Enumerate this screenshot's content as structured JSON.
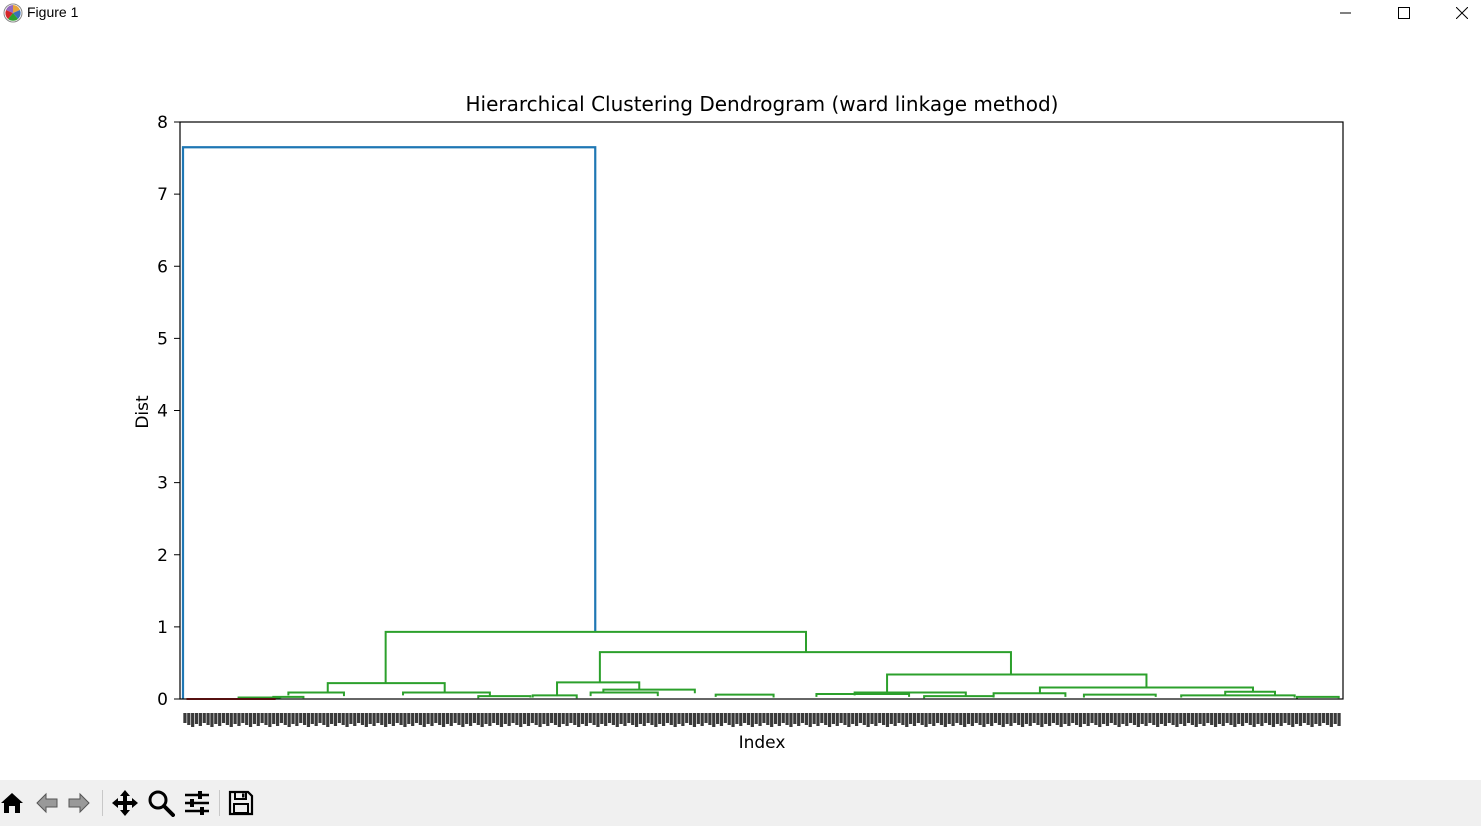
{
  "window": {
    "title": "Figure 1",
    "app_icon": "matplotlib-icon",
    "controls": [
      {
        "name": "minimize-button",
        "icon": "minimize-icon"
      },
      {
        "name": "maximize-button",
        "icon": "maximize-icon"
      },
      {
        "name": "close-button",
        "icon": "close-icon"
      }
    ]
  },
  "toolbar": {
    "tools": [
      {
        "name": "home-button",
        "icon": "home-icon"
      },
      {
        "name": "back-button",
        "icon": "back-arrow-icon"
      },
      {
        "name": "forward-button",
        "icon": "forward-arrow-icon"
      },
      {
        "name": "pan-button",
        "icon": "move-icon"
      },
      {
        "name": "zoom-button",
        "icon": "magnifier-icon"
      },
      {
        "name": "configure-subplots-button",
        "icon": "sliders-icon"
      },
      {
        "name": "save-button",
        "icon": "save-icon"
      }
    ]
  },
  "chart_data": {
    "type": "dendrogram",
    "title": "Hierarchical Clustering Dendrogram (ward linkage method)",
    "xlabel": "Index",
    "ylabel": "Dist",
    "ylim": [
      0,
      8
    ],
    "yticks": [
      "0",
      "1",
      "2",
      "3",
      "4",
      "5",
      "6",
      "7",
      "8"
    ],
    "xlim": [
      0,
      1
    ],
    "x_tick_labels_note_count": 300,
    "colors": {
      "root": "#1f77b4",
      "cluster_small": "#d62728",
      "cluster_large": "#2ca02c",
      "text": "#000000"
    },
    "links": [
      {
        "c": "root",
        "x1": 0.0,
        "x2": 0.356,
        "h": 7.65,
        "h1": 0.0,
        "h2": 0.93
      },
      {
        "c": "cluster_large",
        "x1": 0.175,
        "x2": 0.538,
        "h": 0.93,
        "h1": 0.22,
        "h2": 0.65
      },
      {
        "c": "cluster_large",
        "x1": 0.36,
        "x2": 0.715,
        "h": 0.65,
        "h1": 0.23,
        "h2": 0.34
      },
      {
        "c": "cluster_large",
        "x1": 0.608,
        "x2": 0.832,
        "h": 0.34,
        "h1": 0.09,
        "h2": 0.16
      },
      {
        "c": "cluster_large",
        "x1": 0.125,
        "x2": 0.226,
        "h": 0.22,
        "h1": 0.09,
        "h2": 0.09
      },
      {
        "c": "cluster_large",
        "x1": 0.323,
        "x2": 0.394,
        "h": 0.23,
        "h1": 0.04,
        "h2": 0.13
      },
      {
        "c": "cluster_large",
        "x1": 0.363,
        "x2": 0.442,
        "h": 0.13,
        "h1": 0.09,
        "h2": 0.08
      },
      {
        "c": "cluster_large",
        "x1": 0.74,
        "x2": 0.924,
        "h": 0.16,
        "h1": 0.08,
        "h2": 0.1
      },
      {
        "c": "cluster_large",
        "x1": 0.58,
        "x2": 0.676,
        "h": 0.09,
        "h1": 0.05,
        "h2": 0.03
      },
      {
        "c": "cluster_large",
        "x1": 0.9,
        "x2": 0.943,
        "h": 0.1,
        "h1": 0.05,
        "h2": 0.04
      },
      {
        "c": "cluster_large",
        "x1": 0.091,
        "x2": 0.139,
        "h": 0.09,
        "h1": 0.05,
        "h2": 0.04
      },
      {
        "c": "cluster_large",
        "x1": 0.19,
        "x2": 0.265,
        "h": 0.09,
        "h1": 0.05,
        "h2": 0.04
      },
      {
        "c": "cluster_large",
        "x1": 0.352,
        "x2": 0.41,
        "h": 0.09,
        "h1": 0.04,
        "h2": 0.04
      },
      {
        "c": "cluster_large",
        "x1": 0.7,
        "x2": 0.762,
        "h": 0.08,
        "h1": 0.04,
        "h2": 0.03
      },
      {
        "c": "cluster_large",
        "x1": 0.547,
        "x2": 0.627,
        "h": 0.07,
        "h1": 0.03,
        "h2": 0.03
      },
      {
        "c": "cluster_large",
        "x1": 0.46,
        "x2": 0.51,
        "h": 0.06,
        "h1": 0.03,
        "h2": 0.02
      },
      {
        "c": "cluster_large",
        "x1": 0.778,
        "x2": 0.84,
        "h": 0.06,
        "h1": 0.02,
        "h2": 0.03
      },
      {
        "c": "cluster_large",
        "x1": 0.862,
        "x2": 0.96,
        "h": 0.05,
        "h1": 0.02,
        "h2": 0.02
      },
      {
        "c": "cluster_large",
        "x1": 0.255,
        "x2": 0.3,
        "h": 0.04,
        "h1": 0.01,
        "h2": 0.02
      },
      {
        "c": "cluster_large",
        "x1": 0.302,
        "x2": 0.34,
        "h": 0.05,
        "h1": 0.02,
        "h2": 0.01
      },
      {
        "c": "cluster_large",
        "x1": 0.64,
        "x2": 0.7,
        "h": 0.04,
        "h1": 0.01,
        "h2": 0.02
      },
      {
        "c": "cluster_large",
        "x1": 0.962,
        "x2": 0.998,
        "h": 0.03,
        "h1": 0.0,
        "h2": 0.01
      },
      {
        "c": "cluster_large",
        "x1": 0.078,
        "x2": 0.104,
        "h": 0.03,
        "h1": 0.0,
        "h2": 0.01
      },
      {
        "c": "cluster_large",
        "x1": 0.048,
        "x2": 0.084,
        "h": 0.02,
        "h1": 0.0,
        "h2": 0.01
      },
      {
        "c": "cluster_small",
        "x1": 0.003,
        "x2": 0.08,
        "h": 0.0,
        "h1": 0.0,
        "h2": 0.0
      }
    ]
  }
}
